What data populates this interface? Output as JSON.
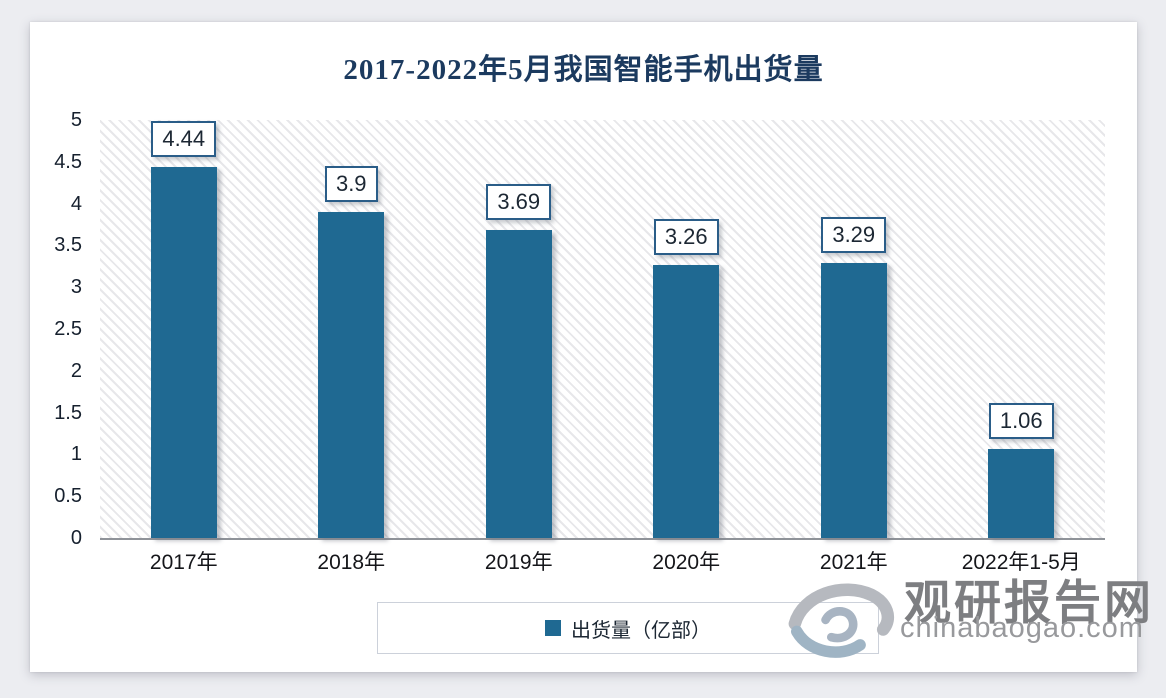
{
  "page": {
    "background_color": "#ecedf1",
    "card_color": "#ffffff"
  },
  "chart_data": {
    "type": "bar",
    "title": "2017-2022年5月我国智能手机出货量",
    "categories": [
      "2017年",
      "2018年",
      "2019年",
      "2020年",
      "2021年",
      "2022年1-5月"
    ],
    "values": [
      4.44,
      3.9,
      3.69,
      3.26,
      3.29,
      1.06
    ],
    "value_labels": [
      "4.44",
      "3.9",
      "3.69",
      "3.26",
      "3.29",
      "1.06"
    ],
    "xlabel": "",
    "ylabel": "",
    "ylim": [
      0,
      5
    ],
    "ytick_step": 0.5,
    "yticks": [
      "5",
      "4.5",
      "4",
      "3.5",
      "3",
      "2.5",
      "2",
      "1.5",
      "1",
      "0.5",
      "0"
    ],
    "grid": false,
    "hatch_background": true,
    "legend": {
      "position": "bottom",
      "label": "出货量（亿部）"
    },
    "colors": {
      "bar": "#1f6992",
      "title_text": "#1b3a5f",
      "value_box_border": "#2a5d88",
      "value_box_text": "#1c2733",
      "axis_line": "#8f9399",
      "tick_text": "#16202e"
    }
  },
  "watermark": {
    "logo": "swirl-logo",
    "site_name": "观研报告网",
    "site_url": "chinabaogao.com",
    "name_color": "#7d7e81",
    "url_color": "#98999c"
  }
}
